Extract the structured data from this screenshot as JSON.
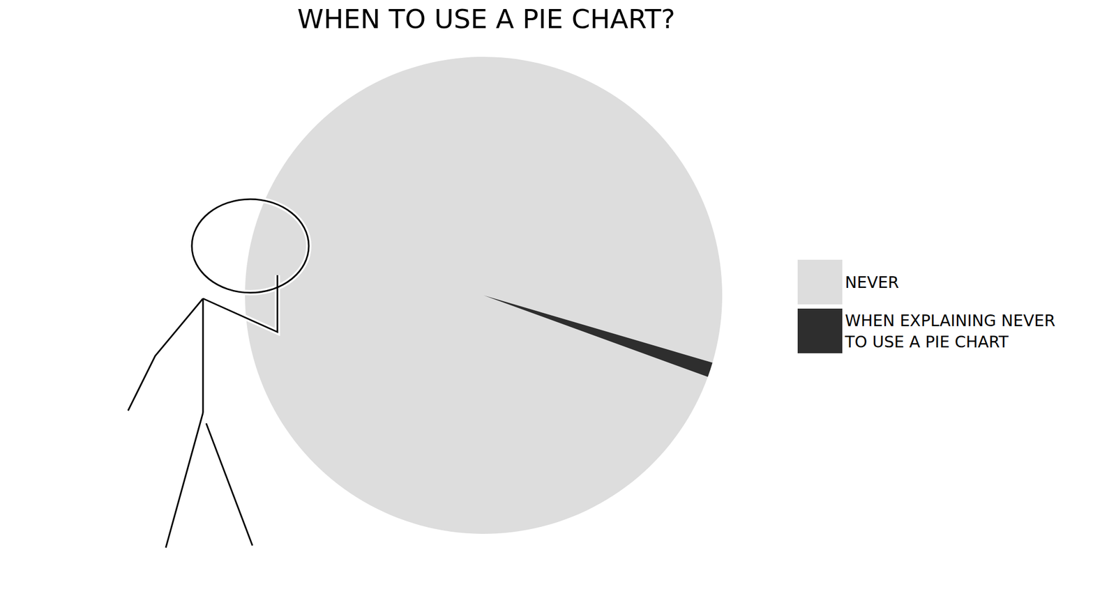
{
  "chart_data": {
    "type": "pie",
    "title": "WHEN TO USE A PIE CHART?",
    "categories": [
      "NEVER",
      "WHEN EXPLAINING NEVER TO USE A PIE CHART"
    ],
    "values": [
      99,
      1
    ],
    "colors": [
      "#dddddd",
      "#2e2e2e"
    ],
    "legend": "right"
  }
}
